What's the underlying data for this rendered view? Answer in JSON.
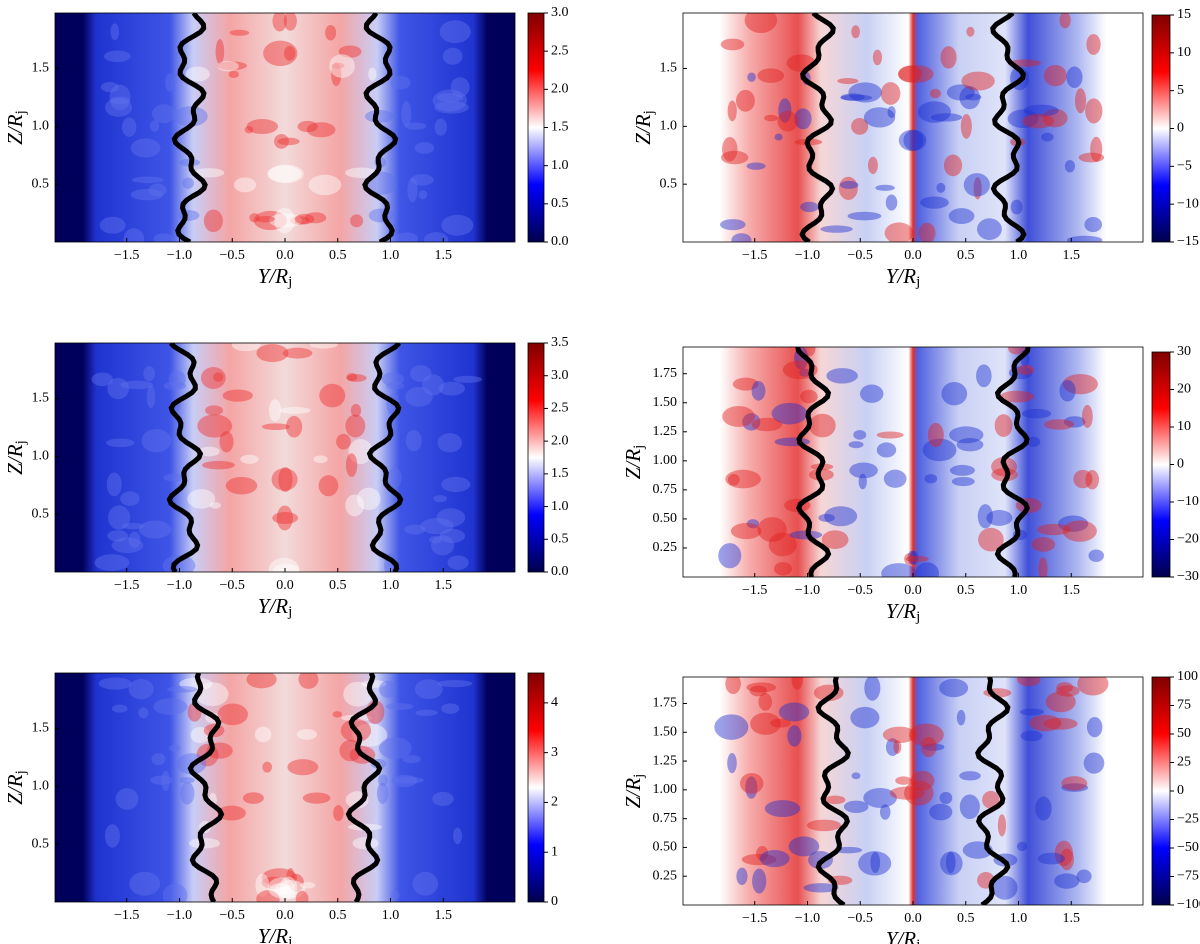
{
  "chart_data": [
    {
      "type": "heatmap",
      "xlabel": {
        "main": "Y/R",
        "sub": "j"
      },
      "ylabel": {
        "main": "Z/R",
        "sub": "j"
      },
      "xlim": [
        -2.18,
        2.18
      ],
      "ylim": [
        0,
        1.98
      ],
      "xticks": [
        {
          "value": -1.5,
          "label": "−1.5"
        },
        {
          "value": -1,
          "label": "−1.0"
        },
        {
          "value": -0.5,
          "label": "−0.5"
        },
        {
          "value": 0,
          "label": "0.0"
        },
        0.5,
        {
          "value": 1,
          "label": "1.0"
        },
        1.5
      ],
      "yticks": [
        0.5,
        {
          "value": 1,
          "label": "1.0"
        },
        1.5
      ],
      "clim": [
        0,
        3
      ],
      "cticks": [
        {
          "value": 0,
          "label": "0.0"
        },
        0.5,
        {
          "value": 1,
          "label": "1.0"
        },
        1.5,
        {
          "value": 2,
          "label": "2.0"
        },
        2.5,
        {
          "value": 3,
          "label": "3.0"
        }
      ],
      "colormap": "seismic"
    },
    {
      "type": "heatmap",
      "xlabel": {
        "main": "Y/R",
        "sub": "j"
      },
      "ylabel": {
        "main": "Z/R",
        "sub": "j"
      },
      "xlim": [
        -2.18,
        2.18
      ],
      "ylim": [
        0,
        1.98
      ],
      "xticks": [
        {
          "value": -1.5,
          "label": "−1.5"
        },
        {
          "value": -1,
          "label": "−1.0"
        },
        {
          "value": -0.5,
          "label": "−0.5"
        },
        {
          "value": 0,
          "label": "0.0"
        },
        0.5,
        {
          "value": 1,
          "label": "1.0"
        },
        1.5
      ],
      "yticks": [
        0.5,
        {
          "value": 1,
          "label": "1.0"
        },
        1.5
      ],
      "clim": [
        -15,
        15
      ],
      "cticks": [
        {
          "value": -15,
          "label": "−15"
        },
        {
          "value": -10,
          "label": "−10"
        },
        {
          "value": -5,
          "label": "−5"
        },
        0,
        5,
        10,
        15
      ],
      "colormap": "seismic"
    },
    {
      "type": "heatmap",
      "xlabel": {
        "main": "Y/R",
        "sub": "j"
      },
      "ylabel": {
        "main": "Z/R",
        "sub": "j"
      },
      "xlim": [
        -2.18,
        2.18
      ],
      "ylim": [
        0,
        1.98
      ],
      "xticks": [
        {
          "value": -1.5,
          "label": "−1.5"
        },
        {
          "value": -1,
          "label": "−1.0"
        },
        {
          "value": -0.5,
          "label": "−0.5"
        },
        {
          "value": 0,
          "label": "0.0"
        },
        0.5,
        {
          "value": 1,
          "label": "1.0"
        },
        1.5
      ],
      "yticks": [
        0.5,
        {
          "value": 1,
          "label": "1.0"
        },
        1.5
      ],
      "clim": [
        0,
        3.5
      ],
      "cticks": [
        {
          "value": 0,
          "label": "0.0"
        },
        0.5,
        {
          "value": 1,
          "label": "1.0"
        },
        1.5,
        {
          "value": 2,
          "label": "2.0"
        },
        2.5,
        {
          "value": 3,
          "label": "3.0"
        },
        3.5
      ],
      "colormap": "seismic"
    },
    {
      "type": "heatmap",
      "xlabel": {
        "main": "Y/R",
        "sub": "j"
      },
      "ylabel": {
        "main": "Z/R",
        "sub": "j"
      },
      "xlim": [
        -2.18,
        2.18
      ],
      "ylim": [
        0,
        1.98
      ],
      "xticks": [
        {
          "value": -1.5,
          "label": "−1.5"
        },
        {
          "value": -1,
          "label": "−1.0"
        },
        {
          "value": -0.5,
          "label": "−0.5"
        },
        {
          "value": 0,
          "label": "0.0"
        },
        0.5,
        {
          "value": 1,
          "label": "1.0"
        },
        1.5
      ],
      "yticks": [
        0.25,
        {
          "value": 0.5,
          "label": "0.50"
        },
        0.75,
        {
          "value": 1,
          "label": "1.00"
        },
        1.25,
        {
          "value": 1.5,
          "label": "1.50"
        },
        1.75
      ],
      "clim": [
        -30,
        30
      ],
      "cticks": [
        {
          "value": -30,
          "label": "−30"
        },
        {
          "value": -20,
          "label": "−20"
        },
        {
          "value": -10,
          "label": "−10"
        },
        0,
        10,
        20,
        30
      ],
      "colormap": "seismic"
    },
    {
      "type": "heatmap",
      "xlabel": {
        "main": "Y/R",
        "sub": "j"
      },
      "ylabel": {
        "main": "Z/R",
        "sub": "j"
      },
      "xlim": [
        -2.18,
        2.18
      ],
      "ylim": [
        0,
        1.98
      ],
      "xticks": [
        {
          "value": -1.5,
          "label": "−1.5"
        },
        {
          "value": -1,
          "label": "−1.0"
        },
        {
          "value": -0.5,
          "label": "−0.5"
        },
        {
          "value": 0,
          "label": "0.0"
        },
        0.5,
        {
          "value": 1,
          "label": "1.0"
        },
        1.5
      ],
      "yticks": [
        0.5,
        {
          "value": 1,
          "label": "1.0"
        },
        1.5
      ],
      "clim": [
        0,
        4.6
      ],
      "cticks": [
        0,
        1,
        2,
        3,
        4
      ],
      "colormap": "seismic"
    },
    {
      "type": "heatmap",
      "xlabel": {
        "main": "Y/R",
        "sub": "j"
      },
      "ylabel": {
        "main": "Z/R",
        "sub": "j"
      },
      "xlim": [
        -2.18,
        2.18
      ],
      "ylim": [
        0,
        1.98
      ],
      "xticks": [
        {
          "value": -1.5,
          "label": "−1.5"
        },
        {
          "value": -1,
          "label": "−1.0"
        },
        {
          "value": -0.5,
          "label": "−0.5"
        },
        {
          "value": 0,
          "label": "0.0"
        },
        0.5,
        {
          "value": 1,
          "label": "1.0"
        },
        1.5
      ],
      "yticks": [
        0.25,
        {
          "value": 0.5,
          "label": "0.50"
        },
        0.75,
        {
          "value": 1,
          "label": "1.00"
        },
        1.25,
        {
          "value": 1.5,
          "label": "1.50"
        },
        1.75
      ],
      "clim": [
        -100,
        100
      ],
      "cticks": [
        {
          "value": -100,
          "label": "−100"
        },
        {
          "value": -75,
          "label": "−75"
        },
        {
          "value": -50,
          "label": "−50"
        },
        {
          "value": -25,
          "label": "−25"
        },
        0,
        25,
        50,
        75,
        100
      ],
      "colormap": "seismic"
    }
  ]
}
